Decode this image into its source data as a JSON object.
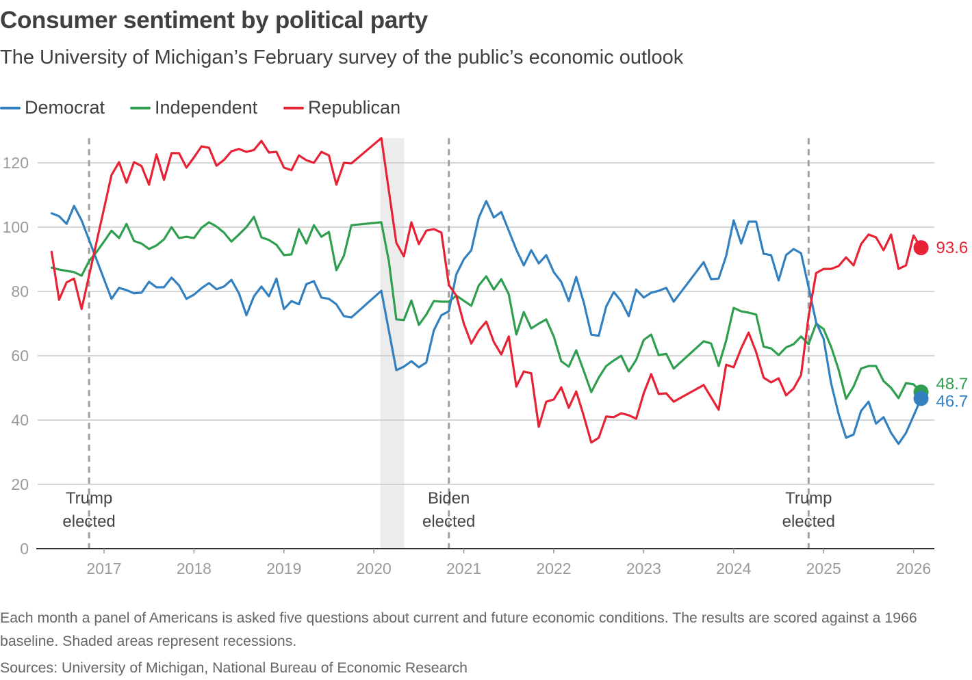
{
  "title": "Consumer sentiment by political party",
  "subtitle": "The University of Michigan’s February survey of the public’s economic outlook",
  "note": "Each month a panel of Americans is asked five questions about current and future economic conditions. The results are scored against a 1966 baseline. Shaded areas represent recessions.",
  "source": "Sources: University of Michigan, National Bureau of Economic Research",
  "chart_data": {
    "type": "line",
    "title": "Consumer sentiment by political party",
    "xlabel": "",
    "ylabel": "",
    "ylim": [
      0,
      125
    ],
    "yticks": [
      0,
      20,
      40,
      60,
      80,
      100,
      120
    ],
    "xticks": [
      "2017",
      "2018",
      "2019",
      "2020",
      "2021",
      "2022",
      "2023",
      "2024",
      "2025",
      "2026"
    ],
    "grid": true,
    "legend": "top-left",
    "x": [
      "2016-06",
      "2016-07",
      "2016-08",
      "2016-09",
      "2016-10",
      "2016-11",
      "2016-12",
      "2017-01",
      "2017-02",
      "2017-03",
      "2017-04",
      "2017-05",
      "2017-06",
      "2017-07",
      "2017-08",
      "2017-09",
      "2017-10",
      "2017-11",
      "2017-12",
      "2018-01",
      "2018-02",
      "2018-03",
      "2018-04",
      "2018-05",
      "2018-06",
      "2018-07",
      "2018-08",
      "2018-09",
      "2018-10",
      "2018-11",
      "2018-12",
      "2019-01",
      "2019-02",
      "2019-03",
      "2019-04",
      "2019-05",
      "2019-06",
      "2019-07",
      "2019-08",
      "2019-09",
      "2019-10",
      "2019-11",
      "2019-12",
      "2020-01",
      "2020-02",
      "2020-03",
      "2020-04",
      "2020-05",
      "2020-06",
      "2020-07",
      "2020-08",
      "2020-09",
      "2020-10",
      "2020-11",
      "2020-12",
      "2021-01",
      "2021-02",
      "2021-03",
      "2021-04",
      "2021-05",
      "2021-06",
      "2021-07",
      "2021-08",
      "2021-09",
      "2021-10",
      "2021-11",
      "2021-12",
      "2022-01",
      "2022-02",
      "2022-03",
      "2022-04",
      "2022-05",
      "2022-06",
      "2022-07",
      "2022-08",
      "2022-09",
      "2022-10",
      "2022-11",
      "2022-12",
      "2023-01",
      "2023-02",
      "2023-03",
      "2023-04",
      "2023-05",
      "2023-06",
      "2023-07",
      "2023-08",
      "2023-09",
      "2023-10",
      "2023-11",
      "2023-12",
      "2024-01",
      "2024-02",
      "2024-03",
      "2024-04",
      "2024-05",
      "2024-06",
      "2024-07",
      "2024-08",
      "2024-09",
      "2024-10",
      "2024-11",
      "2024-12",
      "2025-01",
      "2025-02",
      "2025-03",
      "2025-04",
      "2025-05",
      "2025-06",
      "2025-07",
      "2025-08",
      "2025-09",
      "2025-10",
      "2025-11",
      "2025-12",
      "2026-01",
      "2026-02"
    ],
    "series": [
      {
        "name": "Democrat",
        "color": "#3280c0",
        "end_label": "46.7",
        "values": [
          104.3,
          103.4,
          101,
          106.6,
          102.1,
          null,
          null,
          null,
          77.7,
          81.1,
          80.4,
          79.4,
          79.6,
          83,
          81.3,
          81.3,
          84.3,
          81.9,
          77.7,
          79,
          81,
          82.6,
          80.7,
          81.5,
          83.6,
          79.4,
          72.6,
          78.5,
          81.5,
          78.5,
          84,
          74.5,
          77,
          76,
          82.3,
          83.2,
          78.1,
          77.7,
          76,
          72.3,
          71.9,
          null,
          null,
          null,
          80.2,
          null,
          55.5,
          56.6,
          58.3,
          56.4,
          57.9,
          67.9,
          72.6,
          73.8,
          85.3,
          90,
          92.8,
          103,
          108.1,
          103,
          104.7,
          98.9,
          93,
          88.1,
          92.8,
          88.7,
          91.3,
          86,
          83,
          77,
          84.5,
          76.6,
          66.6,
          66.2,
          75.3,
          79.8,
          77,
          72.3,
          80.6,
          78.1,
          79.6,
          80.2,
          81.1,
          76.8,
          null,
          null,
          null,
          89.1,
          83.8,
          84,
          91,
          102.1,
          94.9,
          101.7,
          101.7,
          91.7,
          91.3,
          83.4,
          91.3,
          93.2,
          91.9,
          81.3,
          70.4,
          65.3,
          51.5,
          41.9,
          34.5,
          35.5,
          42.8,
          45.7,
          38.9,
          40.9,
          36,
          32.6,
          36,
          41.3,
          46.7
        ]
      },
      {
        "name": "Independent",
        "color": "#2f9e4e",
        "end_label": "48.7",
        "values": [
          87.4,
          86.8,
          86.4,
          86,
          84.9,
          89.4,
          92.3,
          95.5,
          98.9,
          96.6,
          101,
          95.7,
          94.9,
          93.2,
          94.3,
          96.2,
          100,
          96.6,
          97,
          96.6,
          99.8,
          101.5,
          100.2,
          98.3,
          95.5,
          97.7,
          100,
          103.2,
          96.8,
          96,
          94.5,
          91.3,
          91.5,
          99.4,
          94.9,
          100.6,
          97,
          98.5,
          86.6,
          91.1,
          100.6,
          null,
          null,
          null,
          101.5,
          89.4,
          71.3,
          71.1,
          77.2,
          69.6,
          72.8,
          77,
          76.8,
          76.8,
          78.7,
          null,
          75.5,
          81.9,
          84.7,
          80.6,
          83.8,
          79.1,
          66.6,
          73.6,
          68.5,
          70,
          71.3,
          66,
          58.3,
          56.6,
          61.7,
          55.3,
          48.7,
          53.2,
          56.8,
          58.5,
          60,
          55.1,
          58.7,
          64.9,
          66.6,
          60.2,
          60.6,
          56,
          null,
          null,
          null,
          64.5,
          63.8,
          56.8,
          64.7,
          74.9,
          73.8,
          73.4,
          72.8,
          62.8,
          62.3,
          60.2,
          62.6,
          63.6,
          66,
          63.6,
          70,
          68.3,
          62.8,
          55.7,
          46.6,
          50.4,
          56,
          56.8,
          56.8,
          52.1,
          50,
          46.8,
          51.5,
          51.1,
          48.7
        ]
      },
      {
        "name": "Republican",
        "color": "#e62234",
        "end_label": "93.6",
        "values": [
          92.3,
          77.4,
          82.8,
          84,
          74.5,
          null,
          null,
          null,
          116.2,
          120.2,
          113.8,
          120.2,
          119,
          113.2,
          122.6,
          114.7,
          123,
          123,
          118.5,
          121.7,
          125.1,
          124.7,
          119.1,
          120.9,
          123.6,
          124.3,
          123.4,
          124,
          126.8,
          123.2,
          123.4,
          118.5,
          117.7,
          122.3,
          120.8,
          120,
          123.4,
          122.3,
          113.2,
          120,
          119.8,
          null,
          null,
          null,
          127.7,
          null,
          95.1,
          90.9,
          101.5,
          94.7,
          98.9,
          99.4,
          98.3,
          82,
          78.7,
          70,
          63.8,
          67.9,
          70.6,
          64.3,
          60.4,
          66,
          50.4,
          55.1,
          54.5,
          37.9,
          45.7,
          46.4,
          50.2,
          43.8,
          48.9,
          41.3,
          33,
          34.5,
          41.1,
          40.9,
          42.1,
          41.5,
          40.4,
          48.3,
          54.3,
          48.1,
          48.3,
          45.7,
          null,
          null,
          null,
          50.9,
          null,
          43.2,
          57.2,
          56.4,
          62.3,
          67.2,
          61.1,
          53.2,
          51.7,
          53,
          47.7,
          49.8,
          54,
          72.3,
          85.7,
          87,
          87,
          87.9,
          90.6,
          88.1,
          94.7,
          97.7,
          96.8,
          92.8,
          97.7,
          87,
          88.1,
          97.4,
          93.6
        ]
      }
    ],
    "recessions": [
      [
        "2020-02",
        "2020-04"
      ]
    ],
    "annotations": [
      {
        "date": "2016-11",
        "line1": "Trump",
        "line2": "elected"
      },
      {
        "date": "2020-11",
        "line1": "Biden",
        "line2": "elected"
      },
      {
        "date": "2024-11",
        "line1": "Trump",
        "line2": "elected"
      }
    ]
  }
}
